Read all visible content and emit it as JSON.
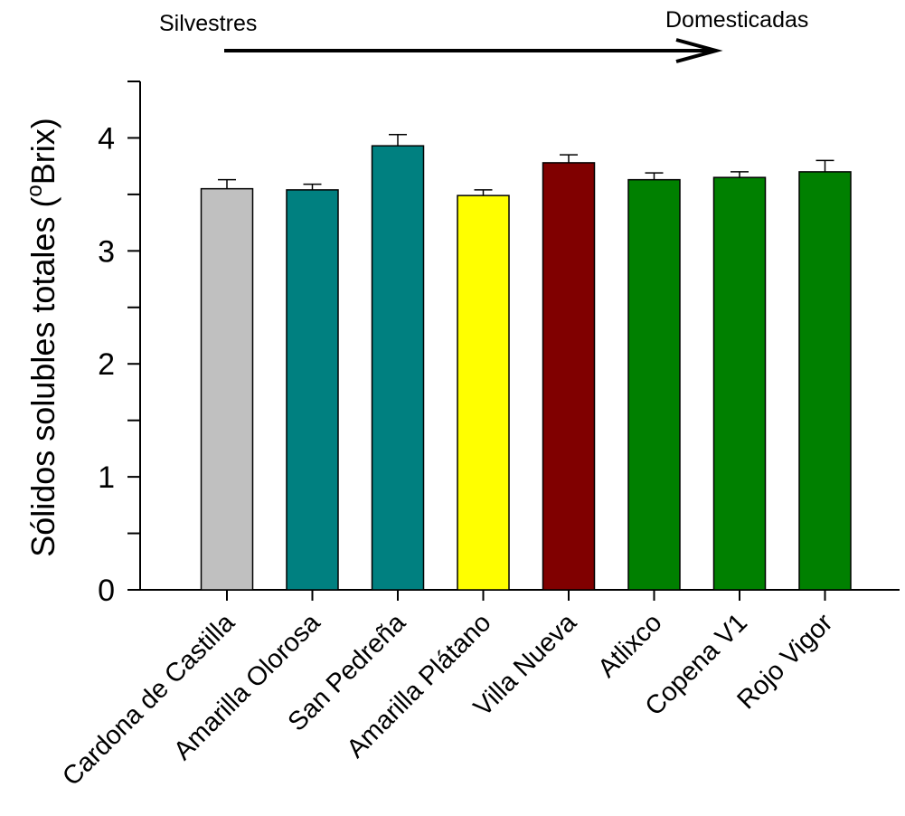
{
  "chart_data": {
    "type": "bar",
    "title": "",
    "xlabel": "",
    "ylabel_main": "Sólidos solubles totales (",
    "ylabel_sup": "o",
    "ylabel_unit": "Brix)",
    "ylim": [
      0,
      4.5
    ],
    "yticks": [
      0,
      1,
      2,
      3,
      4
    ],
    "categories": [
      "Cardona de Castilla",
      "Amarilla Olorosa",
      "San Pedreña",
      "Amarilla Plátano",
      "Villa Nueva",
      "Atlixco",
      "Copena V1",
      "Rojo Vigor"
    ],
    "values": [
      3.55,
      3.54,
      3.93,
      3.49,
      3.78,
      3.63,
      3.65,
      3.7
    ],
    "errors": [
      0.08,
      0.05,
      0.1,
      0.05,
      0.07,
      0.06,
      0.05,
      0.1
    ],
    "colors": [
      "#c0c0c0",
      "#008080",
      "#008080",
      "#ffff00",
      "#800000",
      "#008000",
      "#008000",
      "#008000"
    ],
    "annotation_left": "Silvestres",
    "annotation_right": "Domesticadas"
  }
}
